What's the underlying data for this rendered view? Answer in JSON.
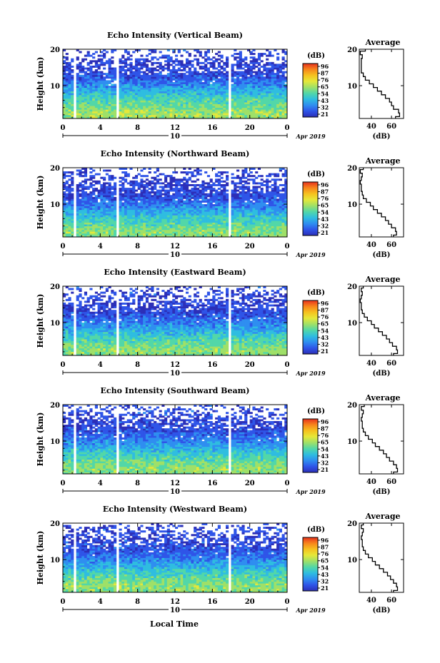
{
  "figure": {
    "xlabel": "Local Time",
    "date_label": "Apr 2019",
    "date_day": "10"
  },
  "colorbar": {
    "unit": "(dB)",
    "ticks": [
      "96",
      "87",
      "76",
      "65",
      "54",
      "43",
      "32",
      "21"
    ],
    "colors": [
      "#e8321e",
      "#f7861c",
      "#f6c21f",
      "#e5e83a",
      "#9fe068",
      "#52d7a8",
      "#2fbde0",
      "#2f8ef0",
      "#2f55e8",
      "#2c2fb8"
    ]
  },
  "colors": {
    "no_data": "#ffffff",
    "profile_line": "#000000"
  },
  "chart_data": [
    {
      "type": "heatmap",
      "title": "Echo Intensity (Vertical Beam)",
      "ylabel": "Height (km)",
      "xlim": [
        0,
        24
      ],
      "ylim": [
        1,
        20
      ],
      "xticks": [
        "0",
        "4",
        "8",
        "12",
        "16",
        "20",
        "0"
      ],
      "yticks": [
        "10",
        "20"
      ],
      "data_gaps_hours": [
        [
          1.2,
          1.5
        ],
        [
          5.7,
          6.0
        ],
        [
          17.6,
          17.9
        ]
      ],
      "profile": {
        "title": "Average",
        "xlabel": "(dB)",
        "xticks": [
          "40",
          "60"
        ],
        "yticks": [
          "10",
          "20"
        ],
        "xlim": [
          28,
          72
        ],
        "height_km": [
          1,
          2,
          3,
          4,
          5,
          6,
          7,
          8,
          9,
          10,
          11,
          12,
          13,
          14,
          15,
          16,
          17,
          18,
          19,
          20
        ],
        "db": [
          64,
          68,
          67,
          62,
          60,
          58,
          54,
          50,
          46,
          42,
          38,
          34,
          32,
          30,
          30,
          30,
          30,
          31,
          29,
          34
        ]
      }
    },
    {
      "type": "heatmap",
      "title": "Echo Intensity (Northward Beam)",
      "ylabel": "Height (km)",
      "xlim": [
        0,
        24
      ],
      "ylim": [
        1,
        20
      ],
      "xticks": [
        "0",
        "4",
        "8",
        "12",
        "16",
        "20",
        "0"
      ],
      "yticks": [
        "10",
        "20"
      ],
      "data_gaps_hours": [
        [
          1.2,
          1.5
        ],
        [
          5.7,
          6.0
        ],
        [
          17.6,
          17.9
        ]
      ],
      "profile": {
        "title": "Average",
        "xlabel": "(dB)",
        "xticks": [
          "40",
          "60"
        ],
        "yticks": [
          "10",
          "20"
        ],
        "xlim": [
          28,
          72
        ],
        "height_km": [
          1,
          2,
          3,
          4,
          5,
          6,
          7,
          8,
          9,
          10,
          11,
          12,
          13,
          14,
          15,
          16,
          17,
          18,
          19,
          20
        ],
        "db": [
          62,
          65,
          64,
          60,
          57,
          54,
          50,
          46,
          42,
          39,
          35,
          32,
          31,
          30,
          30,
          29,
          30,
          31,
          29,
          32
        ]
      }
    },
    {
      "type": "heatmap",
      "title": "Echo Intensity (Eastward Beam)",
      "ylabel": "Height (km)",
      "xlim": [
        0,
        24
      ],
      "ylim": [
        1,
        20
      ],
      "xticks": [
        "0",
        "4",
        "8",
        "12",
        "16",
        "20",
        "0"
      ],
      "yticks": [
        "10",
        "20"
      ],
      "data_gaps_hours": [
        [
          1.2,
          1.5
        ],
        [
          5.7,
          6.0
        ],
        [
          17.6,
          17.9
        ]
      ],
      "profile": {
        "title": "Average",
        "xlabel": "(dB)",
        "xticks": [
          "40",
          "60"
        ],
        "yticks": [
          "10",
          "20"
        ],
        "xlim": [
          28,
          72
        ],
        "height_km": [
          1,
          2,
          3,
          4,
          5,
          6,
          7,
          8,
          9,
          10,
          11,
          12,
          13,
          14,
          15,
          16,
          17,
          18,
          19,
          20
        ],
        "db": [
          62,
          66,
          65,
          61,
          58,
          55,
          51,
          47,
          43,
          40,
          36,
          33,
          31,
          30,
          30,
          29,
          30,
          31,
          30,
          32
        ]
      }
    },
    {
      "type": "heatmap",
      "title": "Echo Intensity (Southward Beam)",
      "ylabel": "Height (km)",
      "xlim": [
        0,
        24
      ],
      "ylim": [
        1,
        20
      ],
      "xticks": [
        "0",
        "4",
        "8",
        "12",
        "16",
        "20",
        "0"
      ],
      "yticks": [
        "10",
        "20"
      ],
      "data_gaps_hours": [
        [
          1.2,
          1.5
        ],
        [
          5.7,
          6.0
        ],
        [
          17.6,
          17.9
        ]
      ],
      "profile": {
        "title": "Average",
        "xlabel": "(dB)",
        "xticks": [
          "40",
          "60"
        ],
        "yticks": [
          "10",
          "20"
        ],
        "xlim": [
          28,
          72
        ],
        "height_km": [
          1,
          2,
          3,
          4,
          5,
          6,
          7,
          8,
          9,
          10,
          11,
          12,
          13,
          14,
          15,
          16,
          17,
          18,
          19,
          20
        ],
        "db": [
          62,
          66,
          65,
          62,
          58,
          55,
          52,
          48,
          44,
          41,
          37,
          34,
          32,
          31,
          31,
          30,
          31,
          32,
          30,
          33
        ]
      }
    },
    {
      "type": "heatmap",
      "title": "Echo Intensity (Westward Beam)",
      "ylabel": "Height (km)",
      "xlim": [
        0,
        24
      ],
      "ylim": [
        1,
        20
      ],
      "xticks": [
        "0",
        "4",
        "8",
        "12",
        "16",
        "20",
        "0"
      ],
      "yticks": [
        "10",
        "20"
      ],
      "data_gaps_hours": [
        [
          1.2,
          1.5
        ],
        [
          5.7,
          6.0
        ],
        [
          17.6,
          17.9
        ]
      ],
      "profile": {
        "title": "Average",
        "xlabel": "(dB)",
        "xticks": [
          "40",
          "60"
        ],
        "yticks": [
          "10",
          "20"
        ],
        "xlim": [
          28,
          72
        ],
        "height_km": [
          1,
          2,
          3,
          4,
          5,
          6,
          7,
          8,
          9,
          10,
          11,
          12,
          13,
          14,
          15,
          16,
          17,
          18,
          19,
          20
        ],
        "db": [
          62,
          66,
          65,
          62,
          59,
          56,
          52,
          48,
          44,
          41,
          37,
          34,
          32,
          31,
          31,
          30,
          31,
          32,
          30,
          32
        ]
      }
    }
  ]
}
